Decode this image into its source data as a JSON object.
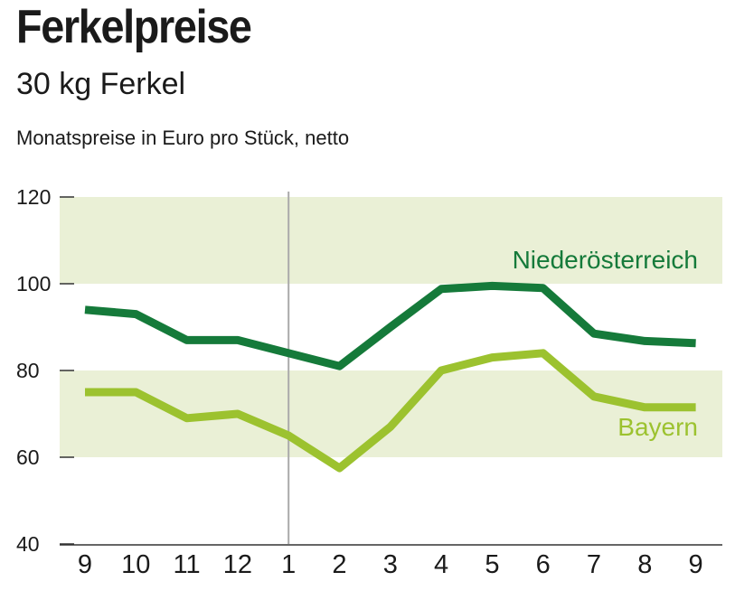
{
  "header": {
    "title": "Ferkelpreise",
    "subtitle": "30 kg Ferkel",
    "note": "Monatspreise in Euro pro Stück, netto"
  },
  "colors": {
    "band": "#eaf0d6",
    "niederoesterreich": "#157a3a",
    "bayern": "#9cc22f",
    "axis": "#333333",
    "divider": "#aaaaaa"
  },
  "chart_data": {
    "type": "line",
    "title": "Ferkelpreise",
    "subtitle": "30 kg Ferkel",
    "ylabel": "Monatspreise in Euro pro Stück, netto",
    "xlabel": "",
    "categories": [
      "9",
      "10",
      "11",
      "12",
      "1",
      "2",
      "3",
      "4",
      "5",
      "6",
      "7",
      "8",
      "9"
    ],
    "ylim": [
      40,
      120
    ],
    "yticks": [
      40,
      60,
      80,
      100,
      120
    ],
    "bands": [
      [
        60,
        80
      ],
      [
        100,
        120
      ]
    ],
    "divider_after_index": 4,
    "series": [
      {
        "name": "Niederösterreich",
        "values": [
          94,
          93,
          87,
          87,
          84,
          81,
          90,
          98.8,
          99.5,
          99,
          88.5,
          86.8,
          86.3
        ]
      },
      {
        "name": "Bayern",
        "values": [
          75,
          75,
          69,
          70,
          65,
          57.5,
          67,
          80,
          83,
          84,
          74,
          71.5,
          71.5
        ]
      }
    ]
  }
}
